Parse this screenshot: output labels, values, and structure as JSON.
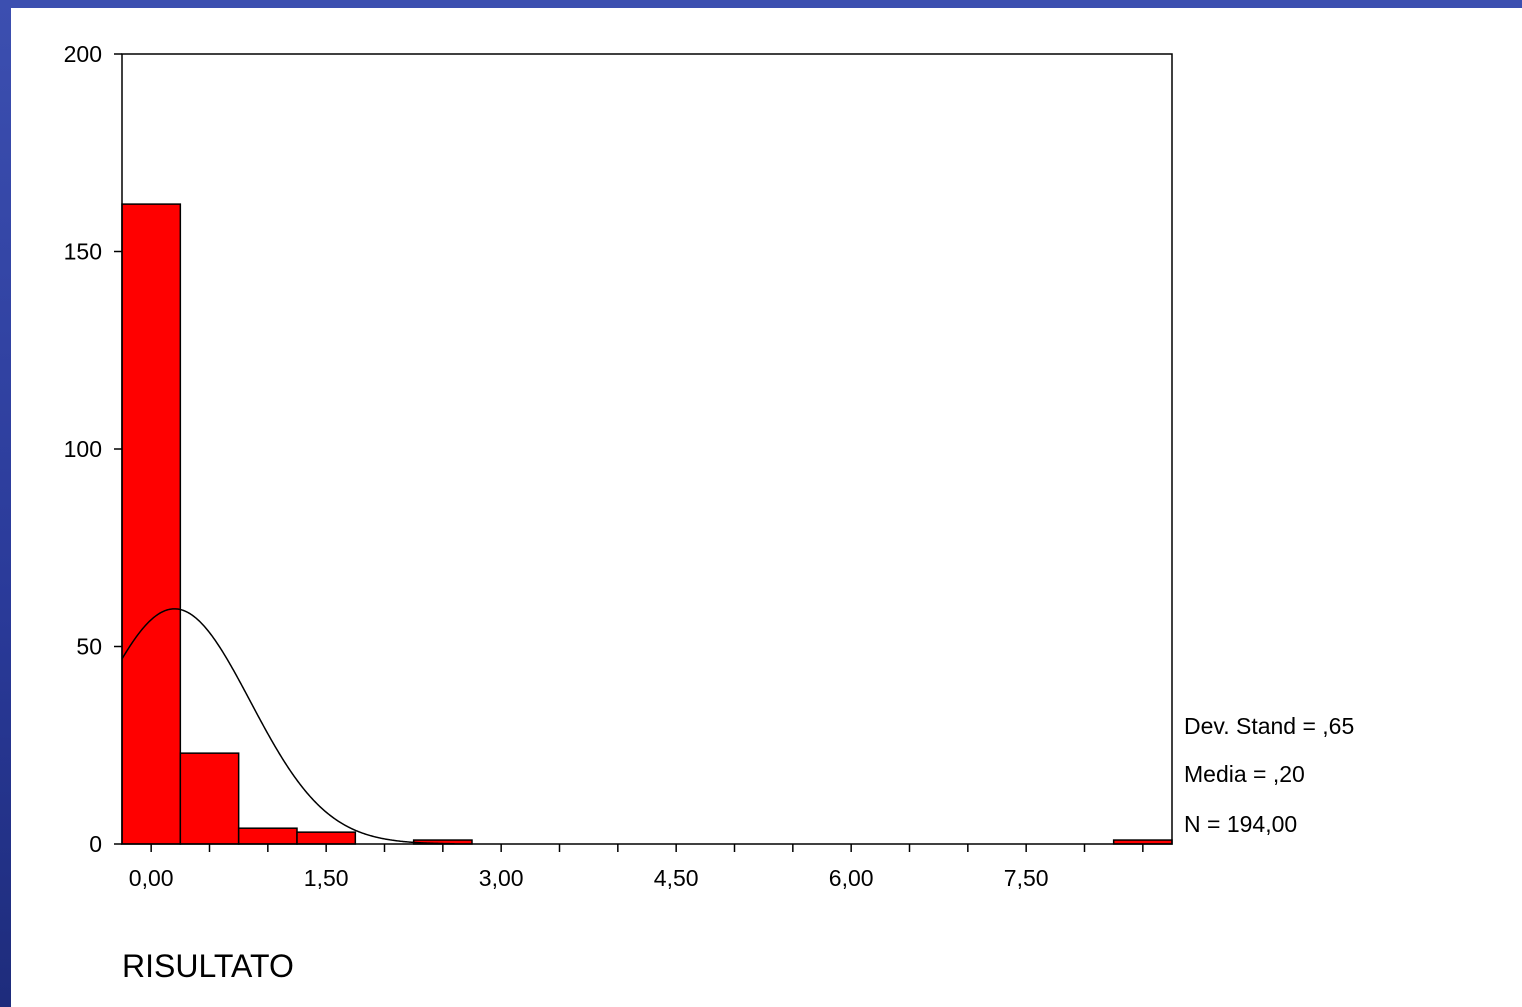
{
  "colors": {
    "bar_fill": "#ff0000",
    "bar_stroke": "#000000",
    "curve": "#000000",
    "frame_blue": "#2b3a8f"
  },
  "chart_data": {
    "type": "bar",
    "title": "",
    "xlabel": "RISULTATO",
    "ylabel": "",
    "bin_width": 0.5,
    "bins": [
      {
        "x": 0.0,
        "count": 162
      },
      {
        "x": 0.5,
        "count": 23
      },
      {
        "x": 1.0,
        "count": 4
      },
      {
        "x": 1.5,
        "count": 3
      },
      {
        "x": 2.5,
        "count": 1
      },
      {
        "x": 8.5,
        "count": 1
      }
    ],
    "xlim": [
      -0.25,
      8.75
    ],
    "ylim": [
      0,
      200
    ],
    "y_ticks": [
      0,
      50,
      100,
      150,
      200
    ],
    "y_tick_labels": [
      "0",
      "50",
      "100",
      "150",
      "200"
    ],
    "x_tick_labels": [
      {
        "x": 0.0,
        "label": "0,00"
      },
      {
        "x": 1.5,
        "label": "1,50"
      },
      {
        "x": 3.0,
        "label": "3,00"
      },
      {
        "x": 4.5,
        "label": "4,50"
      },
      {
        "x": 6.0,
        "label": "6,00"
      },
      {
        "x": 7.5,
        "label": "7,50"
      }
    ],
    "normal_curve": {
      "mean": 0.2,
      "std": 0.65,
      "n": 194
    },
    "stats": {
      "std_label": "Dev. Stand = ,65",
      "mean_label": "Media = ,20",
      "n_label": "N = 194,00"
    }
  }
}
